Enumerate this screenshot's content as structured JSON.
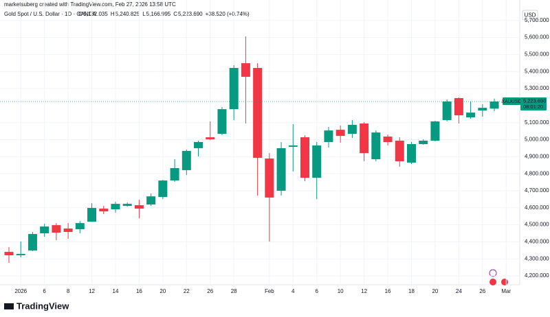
{
  "header": {
    "credit": "marketsuberg created with TradingView.com, Feb 27, 2026 13:58 UTC",
    "symbol": "Gold Spot / U.S. Dollar · 1D · OANDA",
    "ohlc": [
      {
        "key": "O",
        "value": "5,182.035"
      },
      {
        "key": "H",
        "value": "5,240.825"
      },
      {
        "key": "L",
        "value": "5,166.995"
      },
      {
        "key": "C",
        "value": "5,223.690"
      }
    ],
    "change": "+38.520 (+0.74%)",
    "currency": "USD",
    "logo": "TradingView"
  },
  "chart_data": {
    "type": "candlestick",
    "categories": [
      null,
      "2026",
      null,
      "6",
      null,
      "8",
      null,
      "12",
      null,
      "14",
      null,
      "16",
      null,
      "20",
      null,
      "22",
      null,
      "26",
      null,
      "28",
      null,
      null,
      "Feb",
      null,
      "4",
      null,
      "6",
      null,
      "10",
      null,
      "12",
      null,
      "16",
      null,
      "18",
      null,
      "20",
      null,
      "24",
      null,
      "26",
      null,
      "Mar"
    ],
    "open": [
      4341,
      4321,
      4349,
      4450,
      4498,
      4478,
      4474,
      4518,
      4595,
      4591,
      4611,
      4615,
      4619,
      4663,
      4760,
      4821,
      4950,
      5014,
      5034,
      5179,
      5449,
      5421,
      4889,
      4700,
      4958,
      5014,
      4776,
      4986,
      5058,
      5034,
      5095,
      4885,
      5018,
      4994,
      4865,
      4974,
      4994,
      5115,
      5244,
      5131,
      5171,
      5182.035,
      null
    ],
    "high": [
      4369,
      4402,
      4458,
      4506,
      4510,
      4510,
      4522,
      4627,
      4611,
      4635,
      4631,
      4647,
      4684,
      4764,
      4885,
      4942,
      4994,
      5107,
      5191,
      5437,
      5606,
      5449,
      4921,
      4986,
      5091,
      5026,
      4986,
      5075,
      5083,
      5115,
      5103,
      5054,
      5030,
      5014,
      4986,
      5002,
      5111,
      5236,
      5248,
      5224,
      5208,
      5240.825,
      null
    ],
    "low": [
      4277,
      4309,
      4345,
      4430,
      4410,
      4418,
      4450,
      4518,
      4563,
      4571,
      4607,
      4538,
      4611,
      4651,
      4752,
      4792,
      4901,
      4998,
      5026,
      5115,
      5095,
      4672,
      4402,
      4672,
      4813,
      4756,
      4651,
      4954,
      4982,
      5010,
      4873,
      4873,
      4966,
      4841,
      4857,
      4970,
      4990,
      5107,
      5095,
      5123,
      5135,
      5166.995,
      null
    ],
    "close": [
      4321,
      4329,
      4446,
      4490,
      4454,
      4458,
      4510,
      4599,
      4579,
      4623,
      4623,
      4595,
      4667,
      4760,
      4833,
      4934,
      4986,
      5002,
      5179,
      5421,
      5369,
      4893,
      4660,
      4950,
      4966,
      4776,
      4966,
      5054,
      5022,
      5087,
      4921,
      5042,
      4986,
      4873,
      4974,
      4994,
      5107,
      5224,
      5143,
      5159,
      5187,
      5223.69,
      null
    ],
    "up_color": "#089981",
    "down_color": "#f23645",
    "ylim": [
      4148,
      5820
    ],
    "yticks": [
      {
        "value": 4200,
        "label": "4,200.000"
      },
      {
        "value": 4300,
        "label": "4,300.000"
      },
      {
        "value": 4400,
        "label": "4,400.000"
      },
      {
        "value": 4500,
        "label": "4,500.000"
      },
      {
        "value": 4600,
        "label": "4,600.000"
      },
      {
        "value": 4700,
        "label": "4,700.000"
      },
      {
        "value": 4800,
        "label": "4,800.000"
      },
      {
        "value": 4900,
        "label": "4,900.000"
      },
      {
        "value": 5000,
        "label": "5,000.000"
      },
      {
        "value": 5100,
        "label": "5,100.000"
      },
      {
        "value": 5300,
        "label": "5,300.000"
      },
      {
        "value": 5400,
        "label": "5,400.000"
      },
      {
        "value": 5500,
        "label": "5,500.000"
      },
      {
        "value": 5600,
        "label": "5,600.000"
      },
      {
        "value": 5700,
        "label": "5,700.000"
      }
    ],
    "grid": true,
    "last_price": {
      "symbol": "XAUUSD",
      "value": 5223.69,
      "label": "5,223.690",
      "countdown": "08:01:20"
    }
  }
}
